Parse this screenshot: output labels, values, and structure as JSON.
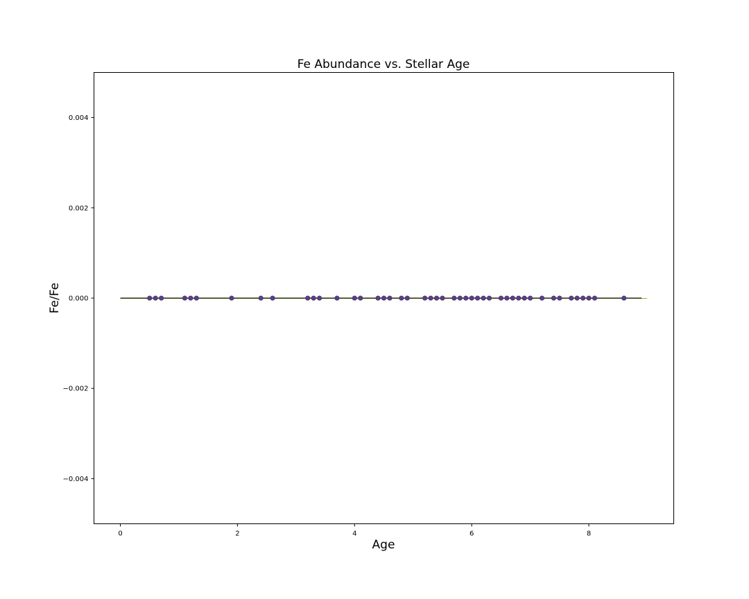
{
  "chart_data": {
    "type": "scatter",
    "title": "Fe Abundance vs. Stellar Age",
    "xlabel": "Age",
    "ylabel": "Fe/Fe",
    "xlim": [
      -0.45,
      9.45
    ],
    "ylim": [
      -0.005,
      0.005
    ],
    "xticks": [
      0,
      2,
      4,
      6,
      8
    ],
    "xtick_labels": [
      "0",
      "2",
      "4",
      "6",
      "8"
    ],
    "yticks": [
      -0.004,
      -0.002,
      0.0,
      0.002,
      0.004
    ],
    "ytick_labels": [
      "−0.004",
      "−0.002",
      "0.000",
      "0.002",
      "0.004"
    ],
    "grid": false,
    "colors": {
      "points": "#5b3f86",
      "point_edge": "#3e2a60",
      "line": "#2f3a1e",
      "line_tail": "#b5a52a"
    },
    "series": [
      {
        "x": [
          0.5,
          0.6,
          0.7,
          1.1,
          1.2,
          1.3,
          1.9,
          2.4,
          2.6,
          3.2,
          3.3,
          3.4,
          3.7,
          4.0,
          4.1,
          4.4,
          4.5,
          4.6,
          4.8,
          4.9,
          5.2,
          5.3,
          5.4,
          5.5,
          5.7,
          5.8,
          5.9,
          6.0,
          6.1,
          6.2,
          6.3,
          6.5,
          6.6,
          6.7,
          6.8,
          6.9,
          7.0,
          7.2,
          7.4,
          7.5,
          7.7,
          7.8,
          7.9,
          8.0,
          8.1,
          8.6
        ],
        "y": [
          0,
          0,
          0,
          0,
          0,
          0,
          0,
          0,
          0,
          0,
          0,
          0,
          0,
          0,
          0,
          0,
          0,
          0,
          0,
          0,
          0,
          0,
          0,
          0,
          0,
          0,
          0,
          0,
          0,
          0,
          0,
          0,
          0,
          0,
          0,
          0,
          0,
          0,
          0,
          0,
          0,
          0,
          0,
          0,
          0,
          0
        ]
      }
    ],
    "trend_line": {
      "x": [
        0.0,
        8.9
      ],
      "y": [
        0,
        0
      ]
    }
  }
}
